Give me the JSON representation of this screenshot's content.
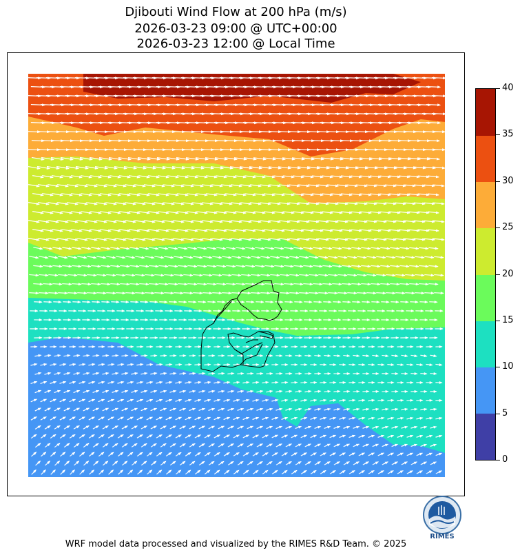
{
  "title": {
    "line1": "Djibouti Wind Flow at 200 hPa (m/s)",
    "line2": "2026-03-23 09:00 @ UTC+00:00",
    "line3": "2026-03-23 12:00 @ Local Time"
  },
  "colorbar": {
    "levels": [
      0,
      5,
      10,
      15,
      20,
      25,
      30,
      35,
      40
    ],
    "tick_labels": [
      "0",
      "5",
      "10",
      "15",
      "20",
      "25",
      "30",
      "35",
      "40"
    ],
    "colors": [
      "#3f3fa6",
      "#4596f5",
      "#1de0c1",
      "#6bfb5b",
      "#cdeb2f",
      "#fdac38",
      "#ec5011",
      "#a71503"
    ]
  },
  "map": {
    "vector_color": "#ffffff",
    "boundary_color": "#000000"
  },
  "logo": {
    "text": "RIMES"
  },
  "footer": "WRF model data processed and visualized by the RIMES R&D Team. © 2025"
}
